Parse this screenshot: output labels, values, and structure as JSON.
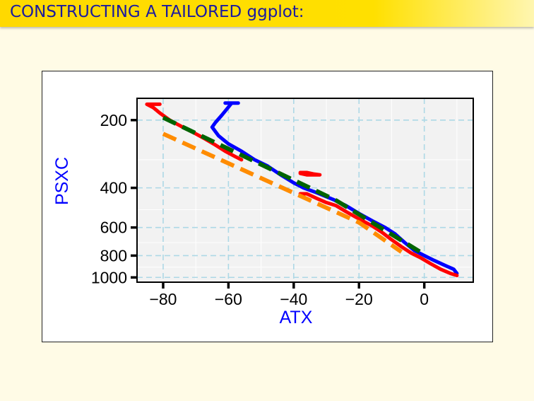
{
  "slide": {
    "title_main": "CONSTRUCTING A TAILORED ",
    "title_code": "ggplot:"
  },
  "chart_data": {
    "type": "line",
    "title": "",
    "xlabel": "ATX",
    "ylabel": "PSXC",
    "xlim": [
      -88,
      15
    ],
    "ylim": [
      1050,
      160
    ],
    "yscale": "log",
    "y_reversed": true,
    "grid": true,
    "x_ticks": [
      -80,
      -60,
      -40,
      -20,
      0
    ],
    "x_tick_labels": [
      "−80",
      "−60",
      "−40",
      "−20",
      "0"
    ],
    "y_ticks": [
      200,
      400,
      600,
      800,
      1000
    ],
    "y_tick_labels": [
      "200",
      "400",
      "600",
      "800",
      "1000"
    ],
    "colors": {
      "blue_profile": "#0000ff",
      "red_profile": "#ff0000",
      "green_dashed": "#006400",
      "orange_dashed": "#ff8c00",
      "panel_background": "#f2f2f2",
      "grid": "#add8e6",
      "axis_label": "#0000ff"
    },
    "series": [
      {
        "color": "blue_profile",
        "style": "solid",
        "points": [
          [
            10,
            960
          ],
          [
            9,
            920
          ],
          [
            6,
            880
          ],
          [
            3,
            840
          ],
          [
            0,
            800
          ],
          [
            -3,
            760
          ],
          [
            -6,
            700
          ],
          [
            -9,
            640
          ],
          [
            -12,
            600
          ],
          [
            -16,
            560
          ],
          [
            -20,
            520
          ],
          [
            -24,
            480
          ],
          [
            -28,
            450
          ],
          [
            -33,
            420
          ],
          [
            -37,
            400
          ],
          [
            -40,
            380
          ],
          [
            -44,
            350
          ],
          [
            -48,
            320
          ],
          [
            -52,
            300
          ],
          [
            -56,
            275
          ],
          [
            -60,
            255
          ],
          [
            -63,
            235
          ],
          [
            -65,
            215
          ],
          [
            -64,
            205
          ],
          [
            -62,
            190
          ],
          [
            -60,
            175
          ],
          [
            -59,
            168
          ],
          [
            -57,
            168
          ],
          [
            -61,
            168
          ]
        ]
      },
      {
        "color": "red_profile",
        "style": "solid",
        "points": [
          [
            10,
            980
          ],
          [
            8,
            960
          ],
          [
            5,
            920
          ],
          [
            2,
            870
          ],
          [
            -1,
            820
          ],
          [
            -4,
            780
          ],
          [
            -7,
            730
          ],
          [
            -10,
            680
          ],
          [
            -13,
            630
          ],
          [
            -16,
            590
          ],
          [
            -20,
            550
          ],
          [
            -24,
            510
          ],
          [
            -27,
            480
          ],
          [
            -30,
            465
          ],
          [
            -33,
            445
          ],
          [
            -36,
            425
          ],
          [
            -38,
            425
          ]
        ]
      },
      {
        "color": "red_profile",
        "style": "solid",
        "points": [
          [
            -56,
            300
          ],
          [
            -58,
            290
          ],
          [
            -61,
            275
          ],
          [
            -64,
            258
          ],
          [
            -67,
            243
          ],
          [
            -70,
            230
          ],
          [
            -74,
            215
          ],
          [
            -78,
            200
          ],
          [
            -81,
            186
          ],
          [
            -83,
            176
          ],
          [
            -85,
            170
          ],
          [
            -81,
            170
          ]
        ]
      },
      {
        "color": "red_profile",
        "style": "solid",
        "points": [
          [
            -38,
            345
          ],
          [
            -36,
            350
          ],
          [
            -34,
            350
          ],
          [
            -32,
            350
          ],
          [
            -34,
            347
          ],
          [
            -36,
            342
          ],
          [
            -38,
            342
          ]
        ]
      },
      {
        "color": "green_dashed",
        "style": "dashed",
        "points": [
          [
            -80,
            195
          ],
          [
            -27,
            455
          ],
          [
            0,
            790
          ]
        ]
      },
      {
        "color": "orange_dashed",
        "style": "dashed",
        "points": [
          [
            -80,
            230
          ],
          [
            -20,
            570
          ],
          [
            -7,
            770
          ]
        ]
      }
    ]
  }
}
